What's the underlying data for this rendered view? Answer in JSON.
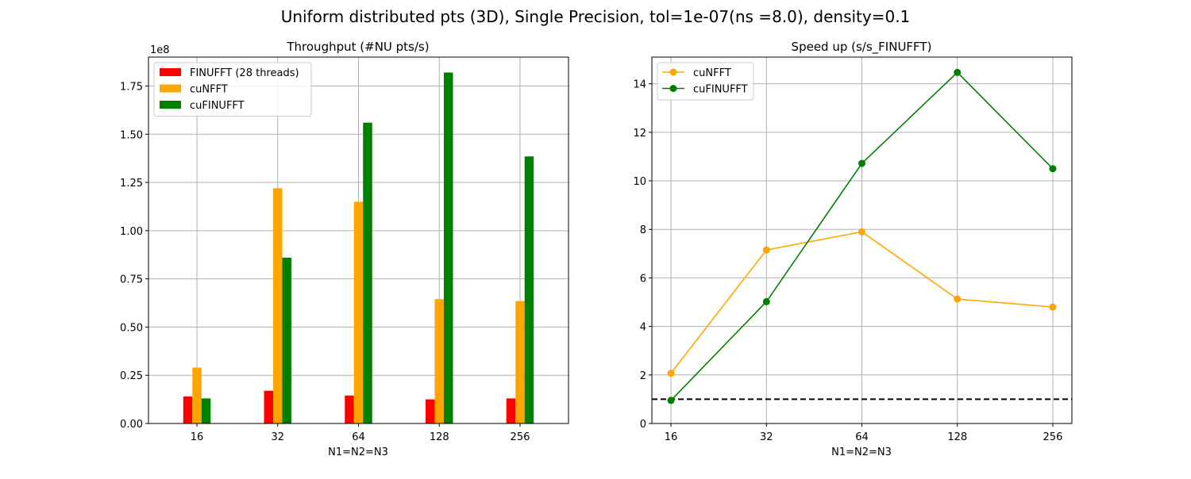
{
  "figure": {
    "suptitle": "Uniform distributed pts (3D), Single Precision, tol=1e-07(ns =8.0), density=0.1"
  },
  "chart_data": [
    {
      "type": "bar",
      "title": "Throughput (#NU pts/s)",
      "xlabel": "N1=N2=N3",
      "ylabel": "",
      "y_offset_label": "1e8",
      "categories": [
        "16",
        "32",
        "64",
        "128",
        "256"
      ],
      "ylim": [
        0,
        1.9
      ],
      "yticks": [
        0.0,
        0.25,
        0.5,
        0.75,
        1.0,
        1.25,
        1.5,
        1.75
      ],
      "ytick_labels": [
        "0.00",
        "0.25",
        "0.50",
        "0.75",
        "1.00",
        "1.25",
        "1.50",
        "1.75"
      ],
      "grid": true,
      "legend_position": "upper-left",
      "series": [
        {
          "name": "FINUFFT (28 threads)",
          "color": "#ff0000",
          "values": [
            0.14,
            0.17,
            0.145,
            0.125,
            0.13
          ]
        },
        {
          "name": "cuNFFT",
          "color": "#ffa500",
          "values": [
            0.29,
            1.22,
            1.15,
            0.645,
            0.635
          ]
        },
        {
          "name": "cuFINUFFT",
          "color": "#008000",
          "values": [
            0.13,
            0.86,
            1.56,
            1.82,
            1.385
          ]
        }
      ]
    },
    {
      "type": "line",
      "title": "Speed up (s/s_FINUFFT)",
      "xlabel": "N1=N2=N3",
      "ylabel": "",
      "categories": [
        "16",
        "32",
        "64",
        "128",
        "256"
      ],
      "ylim": [
        0,
        15.1
      ],
      "yticks": [
        0,
        2,
        4,
        6,
        8,
        10,
        12,
        14
      ],
      "ytick_labels": [
        "0",
        "2",
        "4",
        "6",
        "8",
        "10",
        "12",
        "14"
      ],
      "grid": true,
      "legend_position": "upper-left",
      "reference_line": {
        "y": 1.0,
        "style": "dashed",
        "color": "#000000"
      },
      "series": [
        {
          "name": "cuNFFT",
          "color": "#ffa500",
          "values": [
            2.07,
            7.15,
            7.9,
            5.13,
            4.8
          ]
        },
        {
          "name": "cuFINUFFT",
          "color": "#008000",
          "values": [
            0.95,
            5.02,
            10.72,
            14.47,
            10.5
          ]
        }
      ]
    }
  ]
}
